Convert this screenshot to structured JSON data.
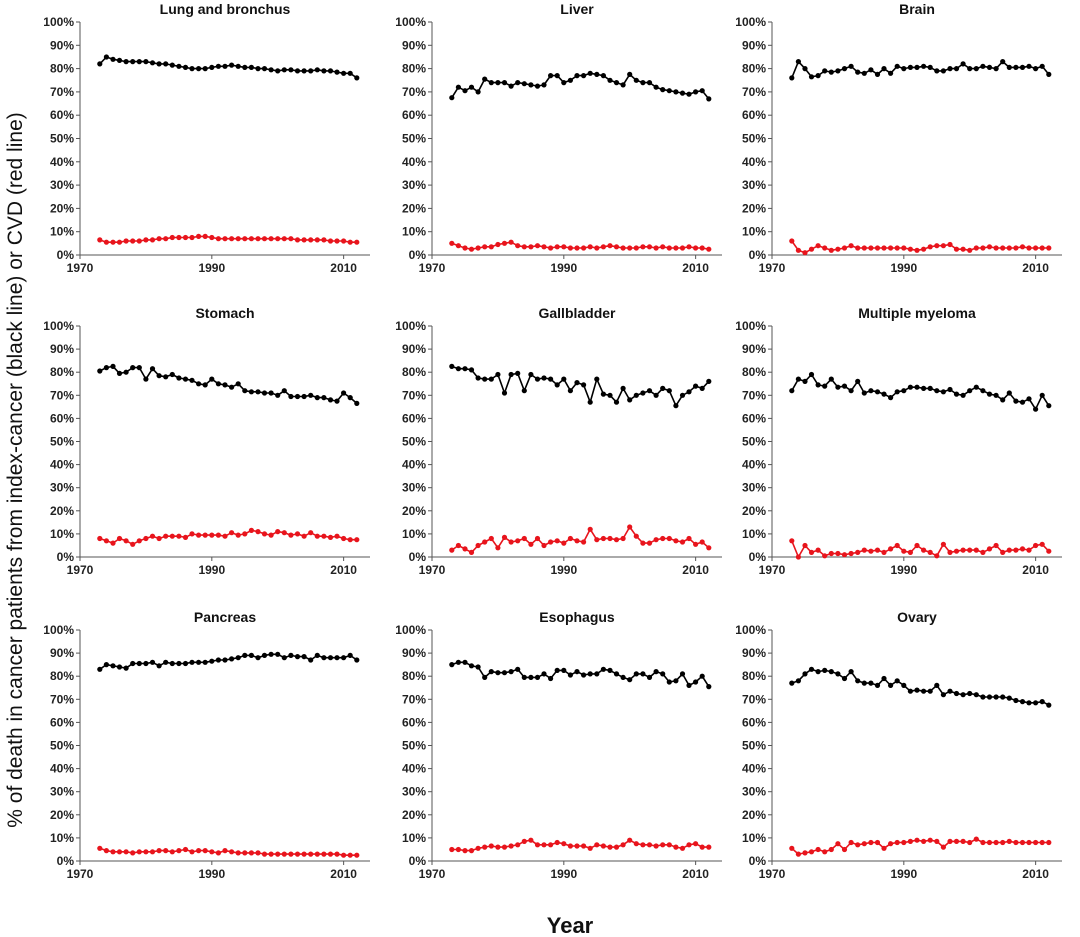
{
  "figure": {
    "ylabel": "% of death in cancer patients from index-cancer (black line) or CVD (red line)",
    "xlabel": "Year",
    "colors": {
      "index_cancer": "#000000",
      "cvd": "#e8141c",
      "axis": "#555555"
    }
  },
  "chart_data": [
    {
      "type": "line",
      "title": "Lung and bronchus",
      "xlim": [
        1970,
        2014
      ],
      "ylim": [
        0,
        100
      ],
      "xticks": [
        "1970",
        "1990",
        "2010"
      ],
      "yticks": [
        "0%",
        "10%",
        "20%",
        "30%",
        "40%",
        "50%",
        "60%",
        "70%",
        "80%",
        "90%",
        "100%"
      ],
      "x_start": 1973,
      "x_end": 2012,
      "series": [
        {
          "color": "#000000",
          "values": [
            82,
            85,
            84,
            83.5,
            83,
            83,
            83,
            83,
            82.5,
            82,
            82,
            81.5,
            81,
            80.5,
            80,
            80,
            80,
            80.5,
            81,
            81,
            81.5,
            81,
            80.5,
            80.5,
            80,
            80,
            79.5,
            79,
            79.5,
            79.5,
            79,
            79,
            79,
            79.5,
            79,
            79,
            78.5,
            78,
            78,
            76
          ]
        },
        {
          "color": "#e8141c",
          "values": [
            6.5,
            5.5,
            5.5,
            5.5,
            6,
            6,
            6,
            6.5,
            6.5,
            7,
            7,
            7.5,
            7.5,
            7.5,
            7.5,
            8,
            8,
            7.5,
            7,
            7,
            7,
            7,
            7,
            7,
            7,
            7,
            7,
            7,
            7,
            7,
            6.5,
            6.5,
            6.5,
            6.5,
            6.5,
            6,
            6,
            6,
            5.5,
            5.5
          ]
        }
      ]
    },
    {
      "type": "line",
      "title": "Liver",
      "xlim": [
        1970,
        2014
      ],
      "ylim": [
        0,
        100
      ],
      "xticks": [
        "1970",
        "1990",
        "2010"
      ],
      "yticks": [
        "0%",
        "10%",
        "20%",
        "30%",
        "40%",
        "50%",
        "60%",
        "70%",
        "80%",
        "90%",
        "100%"
      ],
      "x_start": 1973,
      "x_end": 2012,
      "series": [
        {
          "color": "#000000",
          "values": [
            67.5,
            72,
            70.5,
            72,
            70,
            75.5,
            74,
            74,
            74,
            72.5,
            74,
            73.5,
            73,
            72.5,
            73,
            77,
            77,
            74,
            75,
            77,
            77,
            78,
            77.5,
            77,
            75,
            74,
            73,
            77.5,
            75,
            74,
            74,
            72,
            71,
            70.5,
            70,
            69.5,
            69,
            70,
            70.5,
            67
          ]
        },
        {
          "color": "#e8141c",
          "values": [
            5,
            4,
            3,
            2.5,
            3,
            3.5,
            3.5,
            4.5,
            5,
            5.5,
            4,
            3.5,
            3.5,
            4,
            3.5,
            3,
            3.5,
            3.5,
            3,
            3,
            3,
            3.5,
            3,
            3.5,
            4,
            3.5,
            3,
            3,
            3,
            3.5,
            3.5,
            3,
            3.5,
            3,
            3,
            3,
            3.5,
            3,
            3,
            2.5
          ]
        }
      ]
    },
    {
      "type": "line",
      "title": "Brain",
      "xlim": [
        1970,
        2014
      ],
      "ylim": [
        0,
        100
      ],
      "xticks": [
        "1970",
        "1990",
        "2010"
      ],
      "yticks": [
        "0%",
        "10%",
        "20%",
        "30%",
        "40%",
        "50%",
        "60%",
        "70%",
        "80%",
        "90%",
        "100%"
      ],
      "x_start": 1973,
      "x_end": 2012,
      "series": [
        {
          "color": "#000000",
          "values": [
            76,
            83,
            80,
            76.5,
            77,
            79,
            78.5,
            79,
            80,
            81,
            78.5,
            78,
            79.5,
            77.5,
            80,
            78,
            81,
            80,
            80.5,
            80.5,
            81,
            80.5,
            79,
            79,
            80,
            80,
            82,
            80,
            80,
            81,
            80.5,
            80,
            83,
            80.5,
            80.5,
            80.5,
            81,
            80,
            81,
            77.5
          ]
        },
        {
          "color": "#e8141c",
          "values": [
            6,
            2,
            1,
            2.5,
            4,
            3,
            2,
            2.5,
            3,
            4,
            3,
            3,
            3,
            3,
            3,
            3,
            3,
            3,
            2.5,
            2,
            2.5,
            3.5,
            4,
            4,
            4.5,
            2.5,
            2.5,
            2,
            3,
            3,
            3.5,
            3,
            3,
            3,
            3,
            3.5,
            3,
            3,
            3,
            3
          ]
        }
      ]
    },
    {
      "type": "line",
      "title": "Stomach",
      "xlim": [
        1970,
        2014
      ],
      "ylim": [
        0,
        100
      ],
      "xticks": [
        "1970",
        "1990",
        "2010"
      ],
      "yticks": [
        "0%",
        "10%",
        "20%",
        "30%",
        "40%",
        "50%",
        "60%",
        "70%",
        "80%",
        "90%",
        "100%"
      ],
      "x_start": 1973,
      "x_end": 2012,
      "series": [
        {
          "color": "#000000",
          "values": [
            80.5,
            82,
            82.5,
            79.5,
            80,
            82,
            82,
            77,
            81.5,
            78.5,
            78,
            79,
            77.5,
            77,
            76.5,
            75,
            74.5,
            77,
            75,
            74.5,
            73.5,
            75,
            72,
            71.5,
            71.5,
            71,
            71,
            70,
            72,
            69.5,
            69.5,
            69.5,
            70,
            69,
            69,
            68,
            67.5,
            71,
            69,
            66.5
          ]
        },
        {
          "color": "#e8141c",
          "values": [
            8,
            7,
            6,
            8,
            7,
            5.5,
            7,
            8,
            9,
            8,
            9,
            9,
            9,
            8.5,
            10,
            9.5,
            9.5,
            9.5,
            9.5,
            9,
            10.5,
            9.5,
            10,
            11.5,
            11,
            10,
            9.5,
            11,
            10.5,
            9.5,
            10,
            9,
            10.5,
            9,
            9,
            8.5,
            9,
            8,
            7.5,
            7.5
          ]
        }
      ]
    },
    {
      "type": "line",
      "title": "Gallbladder",
      "xlim": [
        1970,
        2014
      ],
      "ylim": [
        0,
        100
      ],
      "xticks": [
        "1970",
        "1990",
        "2010"
      ],
      "yticks": [
        "0%",
        "10%",
        "20%",
        "30%",
        "40%",
        "50%",
        "60%",
        "70%",
        "80%",
        "90%",
        "100%"
      ],
      "x_start": 1973,
      "x_end": 2012,
      "series": [
        {
          "color": "#000000",
          "values": [
            82.5,
            81.5,
            81.5,
            81,
            77.5,
            77,
            77,
            79,
            71,
            79,
            79.5,
            72,
            79,
            77,
            77.5,
            77,
            74.5,
            77,
            72,
            75.5,
            74.5,
            67,
            77,
            70.5,
            70,
            67,
            73,
            68,
            70,
            71,
            72,
            70,
            73,
            72,
            65.5,
            70,
            71.5,
            74,
            73,
            76
          ]
        },
        {
          "color": "#e8141c",
          "values": [
            3,
            5,
            3.5,
            2,
            5,
            6.5,
            8,
            4,
            8.5,
            6.5,
            7,
            8,
            5.5,
            8,
            5,
            6.5,
            7,
            6,
            8,
            7,
            6.5,
            12,
            7.5,
            8,
            8,
            7.5,
            8,
            13,
            9,
            6,
            6,
            7.5,
            8,
            8,
            7,
            6.5,
            8,
            5.5,
            6.5,
            4
          ]
        }
      ]
    },
    {
      "type": "line",
      "title": "Multiple myeloma",
      "xlim": [
        1970,
        2014
      ],
      "ylim": [
        0,
        100
      ],
      "xticks": [
        "1970",
        "1990",
        "2010"
      ],
      "yticks": [
        "0%",
        "10%",
        "20%",
        "30%",
        "40%",
        "50%",
        "60%",
        "70%",
        "80%",
        "90%",
        "100%"
      ],
      "x_start": 1973,
      "x_end": 2012,
      "series": [
        {
          "color": "#000000",
          "values": [
            72,
            77,
            76,
            79,
            74.5,
            74,
            77,
            73.5,
            74,
            72,
            76,
            71,
            72,
            71.5,
            70.5,
            69,
            71.5,
            72,
            73.5,
            73.5,
            73,
            73,
            72,
            71.5,
            72.5,
            70.5,
            70,
            72,
            73.5,
            72,
            70.5,
            70,
            68,
            71,
            67.5,
            67,
            68.5,
            64,
            70,
            65.5
          ]
        },
        {
          "color": "#e8141c",
          "values": [
            7,
            0,
            5,
            2,
            3,
            0.5,
            1.5,
            1.5,
            1,
            1.5,
            2,
            3,
            2.5,
            3,
            2,
            3.5,
            5,
            2.5,
            2,
            5,
            3,
            2,
            0.5,
            5.5,
            2,
            2.5,
            3,
            3,
            3,
            2,
            3.5,
            5,
            2,
            3,
            3,
            3.5,
            3,
            5,
            5.5,
            2.5
          ]
        }
      ]
    },
    {
      "type": "line",
      "title": "Pancreas",
      "xlim": [
        1970,
        2014
      ],
      "ylim": [
        0,
        100
      ],
      "xticks": [
        "1970",
        "1990",
        "2010"
      ],
      "yticks": [
        "0%",
        "10%",
        "20%",
        "30%",
        "40%",
        "50%",
        "60%",
        "70%",
        "80%",
        "90%",
        "100%"
      ],
      "x_start": 1973,
      "x_end": 2012,
      "series": [
        {
          "color": "#000000",
          "values": [
            83,
            85,
            84.5,
            84,
            83.5,
            85.5,
            85.5,
            85.5,
            86,
            84.5,
            86,
            85.5,
            85.5,
            85.5,
            86,
            86,
            86,
            86.5,
            87,
            87,
            87.5,
            88,
            89,
            89,
            88,
            89,
            89.5,
            89.5,
            88,
            89,
            88.5,
            88.5,
            87,
            89,
            88,
            88,
            88,
            88,
            89,
            87
          ]
        },
        {
          "color": "#e8141c",
          "values": [
            5.5,
            4.5,
            4,
            4,
            4,
            3.5,
            4,
            4,
            4,
            4.5,
            4.5,
            4,
            4.5,
            5,
            4,
            4.5,
            4.5,
            4,
            3.5,
            4.5,
            4,
            3.5,
            3.5,
            3.5,
            3.5,
            3,
            3,
            3,
            3,
            3,
            3,
            3,
            3,
            3,
            3,
            3,
            3,
            2.5,
            2.5,
            2.5
          ]
        }
      ]
    },
    {
      "type": "line",
      "title": "Esophagus",
      "xlim": [
        1970,
        2014
      ],
      "ylim": [
        0,
        100
      ],
      "xticks": [
        "1970",
        "1990",
        "2010"
      ],
      "yticks": [
        "0%",
        "10%",
        "20%",
        "30%",
        "40%",
        "50%",
        "60%",
        "70%",
        "80%",
        "90%",
        "100%"
      ],
      "x_start": 1973,
      "x_end": 2012,
      "series": [
        {
          "color": "#000000",
          "values": [
            85,
            86,
            86,
            84.5,
            84,
            79.5,
            82,
            81.5,
            81.5,
            82,
            83,
            79.5,
            79.5,
            79.5,
            81,
            79,
            82.5,
            82.5,
            80.5,
            82,
            80.5,
            81,
            81,
            83,
            82.5,
            81,
            79.5,
            78.5,
            81,
            81,
            79.5,
            82,
            81,
            77.5,
            78,
            81,
            76,
            77.5,
            80,
            75.5
          ]
        },
        {
          "color": "#e8141c",
          "values": [
            5,
            5,
            4.5,
            4.5,
            5.5,
            6,
            6.5,
            6,
            6,
            6.5,
            7,
            8.5,
            9,
            7,
            7,
            7,
            8,
            7.5,
            6.5,
            6.5,
            6.5,
            5.5,
            7,
            6.5,
            6,
            6,
            7,
            9,
            7.5,
            7,
            7,
            6.5,
            7,
            7,
            6,
            5.5,
            7,
            7.5,
            6,
            6
          ]
        }
      ]
    },
    {
      "type": "line",
      "title": "Ovary",
      "xlim": [
        1970,
        2014
      ],
      "ylim": [
        0,
        100
      ],
      "xticks": [
        "1970",
        "1990",
        "2010"
      ],
      "yticks": [
        "0%",
        "10%",
        "20%",
        "30%",
        "40%",
        "50%",
        "60%",
        "70%",
        "80%",
        "90%",
        "100%"
      ],
      "x_start": 1973,
      "x_end": 2012,
      "series": [
        {
          "color": "#000000",
          "values": [
            77,
            78,
            81,
            83,
            82,
            82.5,
            82,
            81,
            79,
            82,
            78,
            77,
            77,
            76,
            79,
            76,
            78,
            76,
            73.5,
            74,
            73.5,
            73.5,
            76,
            72,
            73.5,
            72.5,
            72,
            72.5,
            72,
            71,
            71,
            71,
            71,
            70.5,
            69.5,
            69,
            68.5,
            68.5,
            69,
            67.5
          ]
        },
        {
          "color": "#e8141c",
          "values": [
            5.5,
            3,
            3.5,
            4,
            5,
            4,
            5,
            7.5,
            5,
            8,
            7,
            7.5,
            8,
            8,
            5.5,
            7.5,
            8,
            8,
            8.5,
            9,
            8.5,
            9,
            8.5,
            6,
            8.5,
            8.5,
            8.5,
            8,
            9.5,
            8,
            8,
            8,
            8,
            8.5,
            8,
            8,
            8,
            8,
            8,
            8
          ]
        }
      ]
    }
  ]
}
